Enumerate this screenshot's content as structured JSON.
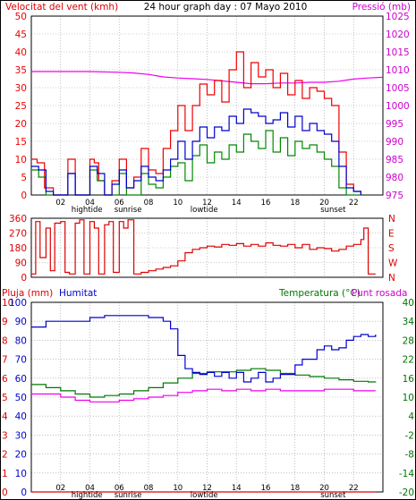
{
  "header": {
    "wind_label": "Velocitat del vent (kmh)",
    "title": "24 hour graph day : 07 Mayo 2010",
    "pressure_label": "Pressió (mb)"
  },
  "panel3_labels": {
    "rain": "Pluja (mm)",
    "humidity": "Humitat",
    "temperature": "Temperatura (°C)",
    "dewpoint": "Punt rosada"
  },
  "colors": {
    "wind_avg": "#0000cc",
    "wind_gust": "#ee0000",
    "wind_green": "#008800",
    "pressure": "#ee00ee",
    "direction": "#dd0000",
    "humidity": "#0000cc",
    "temperature": "#007700",
    "dewpoint": "#ee00ee",
    "rain": "#dd0000",
    "pressure_text": "#cc00cc",
    "frame": "#000000",
    "grid": "#9a9a9a"
  },
  "chart_data": [
    {
      "type": "line",
      "panel": "wind-pressure",
      "x_ticks": [
        "02",
        "04",
        "06",
        "08",
        "10",
        "12",
        "14",
        "16",
        "18",
        "20",
        "22"
      ],
      "events": [
        {
          "label": "hightide",
          "hour": 3.8
        },
        {
          "label": "sunrise",
          "hour": 6.6
        },
        {
          "label": "lowtide",
          "hour": 11.8
        },
        {
          "label": "sunset",
          "hour": 20.6
        }
      ],
      "y_left": {
        "label": "Velocitat del vent (kmh)",
        "ticks": [
          0,
          5,
          10,
          15,
          20,
          25,
          30,
          35,
          40,
          45,
          50
        ],
        "lim": [
          0,
          50
        ]
      },
      "y_right": {
        "label": "Pressió (mb)",
        "ticks": [
          975,
          980,
          985,
          990,
          995,
          1000,
          1005,
          1010,
          1015,
          1020,
          1025
        ],
        "lim": [
          975,
          1025
        ]
      },
      "series": [
        {
          "name": "Pressió (mb)",
          "axis": "right",
          "x": [
            0,
            1,
            2,
            4,
            6,
            7,
            8,
            9,
            10,
            11,
            12,
            13,
            14,
            15,
            16,
            17,
            18,
            19,
            20,
            21,
            22,
            23,
            24
          ],
          "y": [
            1009.5,
            1009.5,
            1009.5,
            1009.5,
            1009.3,
            1009.1,
            1008.7,
            1008.0,
            1007.7,
            1007.5,
            1007.3,
            1006.9,
            1006.5,
            1006.1,
            1006.1,
            1006.3,
            1006.3,
            1006.5,
            1006.5,
            1006.8,
            1007.4,
            1007.7,
            1007.9
          ]
        },
        {
          "name": "gust",
          "axis": "left",
          "x": [
            0,
            0.4,
            0.9,
            1.5,
            2.0,
            2.5,
            3.0,
            3.5,
            4.0,
            4.3,
            4.6,
            5.0,
            5.5,
            6.0,
            6.5,
            7.0,
            7.5,
            8.0,
            8.5,
            9.0,
            9.5,
            10.0,
            10.5,
            11.0,
            11.5,
            12.0,
            12.5,
            13.0,
            13.5,
            14.0,
            14.5,
            15.0,
            15.5,
            16.0,
            16.5,
            17.0,
            17.5,
            18.0,
            18.5,
            19.0,
            19.5,
            20.0,
            20.5,
            21.0,
            21.5,
            22.0,
            22.5
          ],
          "y": [
            10,
            9,
            2,
            0,
            0,
            10,
            0,
            0,
            10,
            9,
            4,
            0,
            4,
            10,
            2,
            5,
            13,
            7,
            6,
            13,
            18,
            25,
            18,
            25,
            31,
            28,
            32,
            26,
            35,
            40,
            30,
            37,
            33,
            35,
            30,
            34,
            28,
            32,
            27,
            30,
            29,
            27,
            25,
            12,
            3,
            1,
            0
          ]
        },
        {
          "name": "average",
          "axis": "left",
          "x": [
            0,
            0.5,
            1.0,
            1.5,
            2.0,
            2.5,
            3.0,
            3.5,
            4.0,
            4.5,
            5.0,
            5.5,
            6.0,
            6.5,
            7.0,
            7.5,
            8.0,
            8.5,
            9.0,
            9.5,
            10.0,
            10.5,
            11.0,
            11.5,
            12.0,
            12.5,
            13.0,
            13.5,
            14.0,
            14.5,
            15.0,
            15.5,
            16.0,
            16.5,
            17.0,
            17.5,
            18.0,
            18.5,
            19.0,
            19.5,
            20.0,
            20.5,
            21.0,
            21.5,
            22.0,
            22.5
          ],
          "y": [
            8,
            7,
            1,
            0,
            0,
            6,
            0,
            0,
            8,
            6,
            0,
            3,
            7,
            2,
            4,
            8,
            5,
            4,
            7,
            10,
            15,
            10,
            15,
            19,
            16,
            19,
            18,
            22,
            20,
            24,
            23,
            22,
            20,
            21,
            23,
            19,
            22,
            18,
            20,
            18,
            17,
            15,
            8,
            2,
            1,
            0
          ]
        },
        {
          "name": "green",
          "axis": "left",
          "x": [
            0,
            0.5,
            1.0,
            1.5,
            2.0,
            2.5,
            3.0,
            3.5,
            4.0,
            4.5,
            5.0,
            5.5,
            6.0,
            6.5,
            7.0,
            7.5,
            8.0,
            8.5,
            9.0,
            9.5,
            10.0,
            10.5,
            11.0,
            11.5,
            12.0,
            12.5,
            13.0,
            13.5,
            14.0,
            14.5,
            15.0,
            15.5,
            16.0,
            16.5,
            17.0,
            17.5,
            18.0,
            18.5,
            19.0,
            19.5,
            20.0,
            20.5,
            21.0,
            21.5,
            22.0,
            22.5
          ],
          "y": [
            7,
            5,
            0,
            0,
            0,
            6,
            0,
            0,
            7,
            4,
            0,
            0,
            6,
            0,
            0,
            6,
            3,
            2,
            5,
            8,
            9,
            4,
            11,
            14,
            9,
            12,
            10,
            14,
            12,
            17,
            15,
            13,
            18,
            12,
            16,
            11,
            15,
            13,
            14,
            12,
            10,
            8,
            2,
            0,
            0,
            0
          ]
        }
      ]
    },
    {
      "type": "line",
      "panel": "wind-direction",
      "y_left": {
        "ticks": [
          0,
          90,
          180,
          270,
          360
        ],
        "lim": [
          0,
          360
        ]
      },
      "y_right": {
        "ticks": [
          "N",
          "W",
          "S",
          "E",
          "N"
        ]
      },
      "series": [
        {
          "name": "direction",
          "x": [
            0,
            0.3,
            0.6,
            1.0,
            1.3,
            1.6,
            2.0,
            2.3,
            2.6,
            3.0,
            3.3,
            3.6,
            4.0,
            4.3,
            4.6,
            5.0,
            5.3,
            5.6,
            6.0,
            6.3,
            6.6,
            7.0,
            7.5,
            8.0,
            8.5,
            9.0,
            9.5,
            10.0,
            10.5,
            11.0,
            11.5,
            12.0,
            12.5,
            13.0,
            13.5,
            14.0,
            14.5,
            15.0,
            15.5,
            16.0,
            16.5,
            17.0,
            17.5,
            18.0,
            18.5,
            19.0,
            19.5,
            20.0,
            20.5,
            21.0,
            21.5,
            22.0,
            22.5,
            22.7,
            23.0,
            23.5
          ],
          "y": [
            20,
            340,
            120,
            300,
            40,
            330,
            340,
            30,
            20,
            330,
            350,
            20,
            340,
            300,
            20,
            320,
            340,
            30,
            340,
            300,
            350,
            20,
            30,
            40,
            50,
            60,
            70,
            100,
            150,
            170,
            180,
            190,
            185,
            200,
            195,
            205,
            190,
            200,
            190,
            210,
            195,
            190,
            200,
            180,
            200,
            170,
            180,
            175,
            160,
            170,
            190,
            200,
            230,
            300,
            20,
            20
          ]
        }
      ]
    },
    {
      "type": "line",
      "panel": "rain-humidity-temperature",
      "y_rain": {
        "label": "Pluja (mm)",
        "ticks": [
          0,
          1,
          2,
          3,
          4,
          5,
          6,
          7,
          8,
          9,
          10
        ]
      },
      "y_humidity": {
        "label": "Humitat",
        "ticks": [
          0,
          10,
          20,
          30,
          40,
          50,
          60,
          70,
          80,
          90,
          100
        ]
      },
      "y_temp": {
        "label": "Temperatura (°C)",
        "ticks": [
          -20,
          -14,
          -8,
          -2,
          4,
          10,
          16,
          22,
          28,
          34,
          40
        ],
        "lim": [
          -20,
          40
        ]
      },
      "series": [
        {
          "name": "Humitat",
          "axis": "humidity",
          "x": [
            0,
            1,
            2,
            3,
            4,
            5,
            6,
            7,
            8,
            9,
            9.5,
            10,
            10.5,
            11,
            11.5,
            12,
            12.5,
            13,
            13.5,
            14,
            14.5,
            15,
            15.5,
            16,
            16.5,
            17,
            17.5,
            18,
            18.5,
            19,
            19.5,
            20,
            20.5,
            21,
            21.5,
            22,
            22.5,
            23,
            23.5
          ],
          "y": [
            87,
            90,
            90,
            90,
            92,
            93,
            93,
            93,
            92,
            90,
            86,
            72,
            65,
            63,
            62,
            63,
            61,
            63,
            60,
            63,
            58,
            60,
            63,
            58,
            60,
            62,
            62,
            67,
            70,
            70,
            75,
            77,
            75,
            76,
            80,
            82,
            83,
            82,
            83
          ]
        },
        {
          "name": "Temperatura (°C)",
          "axis": "temp",
          "x": [
            0,
            1,
            2,
            3,
            4,
            5,
            6,
            7,
            8,
            9,
            10,
            11,
            12,
            13,
            14,
            15,
            16,
            17,
            18,
            19,
            20,
            21,
            22,
            23,
            23.5
          ],
          "y": [
            14,
            13,
            12,
            11,
            10,
            10.5,
            11,
            12,
            13,
            14.5,
            16,
            17.5,
            18,
            18,
            18.5,
            19,
            18.5,
            17.5,
            17,
            16.5,
            16,
            15.5,
            15,
            14.8,
            14.7
          ]
        },
        {
          "name": "Punt rosada",
          "axis": "temp",
          "x": [
            0,
            1,
            2,
            3,
            4,
            5,
            6,
            7,
            8,
            9,
            10,
            11,
            12,
            13,
            14,
            15,
            16,
            17,
            18,
            19,
            20,
            21,
            22,
            23,
            23.5
          ],
          "y": [
            11,
            11,
            10,
            9,
            8.5,
            8.5,
            9,
            9.5,
            10,
            10.5,
            11.5,
            12,
            12.5,
            12,
            12.5,
            12,
            12.5,
            12,
            12,
            12,
            12.5,
            12.5,
            12,
            12,
            12
          ]
        },
        {
          "name": "Pluja (mm)",
          "axis": "rain",
          "x": [
            0,
            23.5
          ],
          "y": [
            0,
            0
          ]
        }
      ]
    }
  ]
}
